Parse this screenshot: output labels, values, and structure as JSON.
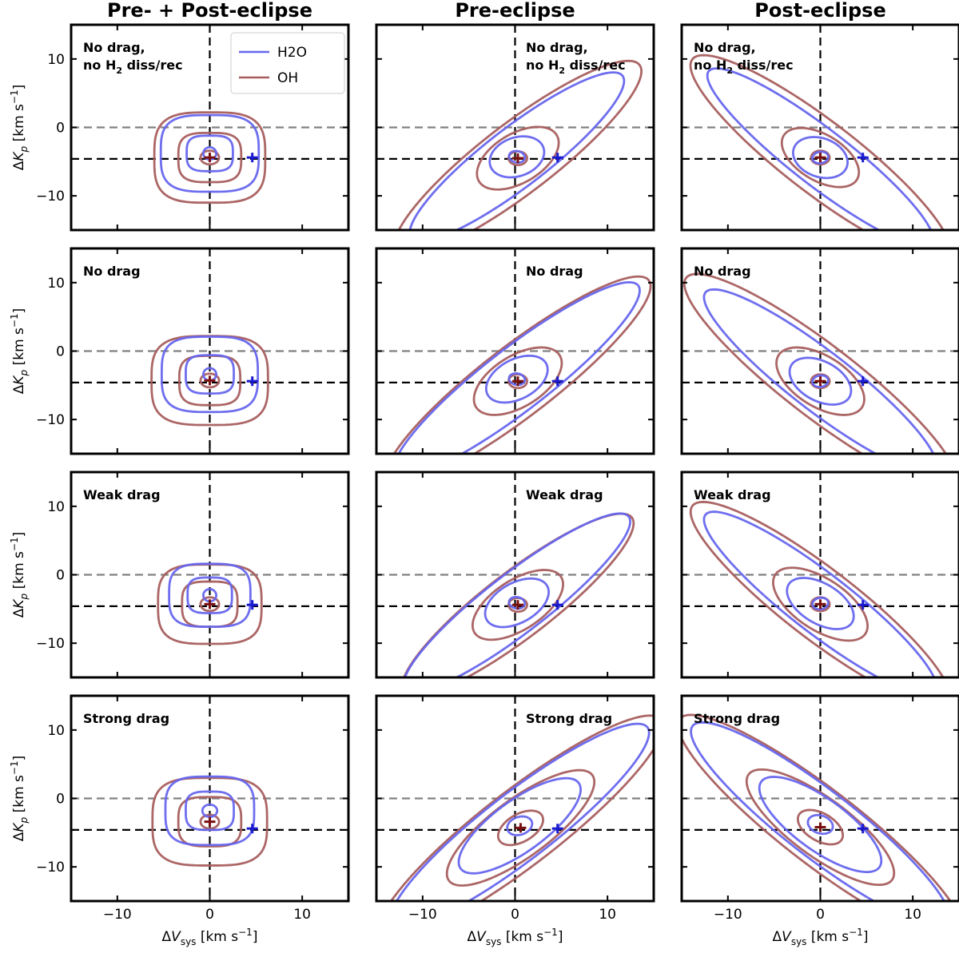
{
  "chart_data": {
    "type": "contour",
    "column_titles": [
      "Pre- + Post-eclipse",
      "Pre-eclipse",
      "Post-eclipse"
    ],
    "row_labels": [
      [
        "No drag,",
        "no H2 diss/rec"
      ],
      [
        "No drag"
      ],
      [
        "Weak drag"
      ],
      [
        "Strong drag"
      ]
    ],
    "xlabel": "ΔVsys [km s-1]",
    "ylabel": "ΔKp [km s-1]",
    "xlim": [
      -15,
      15
    ],
    "ylim": [
      -15,
      15
    ],
    "xticks": [
      -10,
      0,
      10
    ],
    "yticks": [
      -10,
      0,
      10
    ],
    "reference_lines": {
      "vsys_zero": 0,
      "kp_zero": 0,
      "kp_offset": -4.6
    },
    "reference_marker": {
      "dvsys": 4.6,
      "dkp": -4.4
    },
    "colors": {
      "H2O": "#6666ee",
      "OH": "#a85e5e",
      "h2o_marker": "#1a1ad0",
      "oh_marker": "#7a1010",
      "zero_line": "#808080"
    },
    "legend": {
      "position": "upper-right",
      "entries": [
        "H2O",
        "OH"
      ],
      "panel": "row1-col1"
    },
    "species": [
      "H2O",
      "OH"
    ],
    "panels": [
      [
        {
          "H2O_center": [
            0,
            -3.8
          ],
          "OH_center": [
            0,
            -4.4
          ],
          "H2O_contours": [
            [
              0.7,
              0.9
            ],
            [
              2.5,
              2.6
            ],
            [
              5.3,
              5.6
            ]
          ],
          "OH_contours": [
            [
              1.0,
              1.0
            ],
            [
              3.4,
              3.6
            ],
            [
              6.0,
              6.6
            ]
          ]
        },
        {
          "H2O_center": [
            0.2,
            -4.3
          ],
          "OH_center": [
            0.3,
            -4.5
          ],
          "H2O_contours": [
            [
              0.8,
              0.9
            ],
            [
              3.3,
              2.6
            ],
            [
              16.5,
              3.8
            ]
          ],
          "OH_contours": [
            [
              1.0,
              1.0
            ],
            [
              5.5,
              3.2
            ],
            [
              19.0,
              4.5
            ]
          ]
        },
        {
          "H2O_center": [
            0,
            -4.4
          ],
          "OH_center": [
            0,
            -4.4
          ],
          "H2O_contours": [
            [
              0.8,
              0.9
            ],
            [
              3.3,
              2.6
            ],
            [
              17.5,
              3.6
            ]
          ],
          "OH_contours": [
            [
              1.0,
              1.0
            ],
            [
              5.2,
              3.0
            ],
            [
              20.0,
              4.6
            ]
          ]
        }
      ],
      [
        {
          "H2O_center": [
            0,
            -3.4
          ],
          "OH_center": [
            0,
            -4.3
          ],
          "H2O_contours": [
            [
              0.7,
              0.9
            ],
            [
              2.6,
              2.8
            ],
            [
              5.2,
              5.5
            ]
          ],
          "OH_contours": [
            [
              1.0,
              1.0
            ],
            [
              3.3,
              3.6
            ],
            [
              6.3,
              6.5
            ]
          ]
        },
        {
          "H2O_center": [
            0.2,
            -4.1
          ],
          "OH_center": [
            0.3,
            -4.4
          ],
          "H2O_contours": [
            [
              0.8,
              0.9
            ],
            [
              4.0,
              2.6
            ],
            [
              19.0,
              4.0
            ]
          ],
          "OH_contours": [
            [
              1.0,
              1.0
            ],
            [
              6.0,
              3.3
            ],
            [
              20.5,
              4.5
            ]
          ]
        },
        {
          "H2O_center": [
            0,
            -4.4
          ],
          "OH_center": [
            0,
            -4.4
          ],
          "H2O_contours": [
            [
              0.8,
              0.9
            ],
            [
              4.0,
              2.6
            ],
            [
              18.0,
              3.8
            ]
          ],
          "OH_contours": [
            [
              1.0,
              1.0
            ],
            [
              6.0,
              3.3
            ],
            [
              21.0,
              4.6
            ]
          ]
        }
      ],
      [
        {
          "H2O_center": [
            0,
            -3.0
          ],
          "OH_center": [
            0,
            -4.3
          ],
          "H2O_contours": [
            [
              0.7,
              0.9
            ],
            [
              2.4,
              2.6
            ],
            [
              4.4,
              4.6
            ]
          ],
          "OH_contours": [
            [
              1.0,
              1.0
            ],
            [
              3.0,
              3.3
            ],
            [
              5.6,
              5.8
            ]
          ]
        },
        {
          "H2O_center": [
            0.2,
            -4.1
          ],
          "OH_center": [
            0.3,
            -4.4
          ],
          "H2O_contours": [
            [
              0.8,
              0.9
            ],
            [
              4.2,
              2.6
            ],
            [
              17.5,
              3.8
            ]
          ],
          "OH_contours": [
            [
              1.0,
              1.0
            ],
            [
              6.3,
              3.2
            ],
            [
              17.8,
              4.2
            ]
          ]
        },
        {
          "H2O_center": [
            0,
            -4.2
          ],
          "OH_center": [
            0,
            -4.3
          ],
          "H2O_contours": [
            [
              0.8,
              0.9
            ],
            [
              4.5,
              2.6
            ],
            [
              18.0,
              3.8
            ]
          ],
          "OH_contours": [
            [
              1.0,
              1.0
            ],
            [
              6.6,
              3.3
            ],
            [
              20.0,
              4.5
            ]
          ]
        }
      ],
      [
        {
          "H2O_center": [
            0,
            -1.8
          ],
          "OH_center": [
            0,
            -3.4
          ],
          "H2O_contours": [
            [
              0.8,
              0.9
            ],
            [
              2.6,
              2.8
            ],
            [
              4.8,
              5.0
            ]
          ],
          "OH_contours": [
            [
              1.0,
              1.0
            ],
            [
              3.4,
              3.6
            ],
            [
              6.2,
              6.4
            ]
          ]
        },
        {
          "H2O_center": [
            0.5,
            -4.0
          ],
          "OH_center": [
            0.6,
            -4.3
          ],
          "H2O_contours": [
            [
              1.5,
              1.2
            ],
            [
              9.0,
              3.3
            ],
            [
              20.0,
              4.3
            ]
          ],
          "OH_contours": [
            [
              3.0,
              1.8
            ],
            [
              11.0,
              3.7
            ],
            [
              22.0,
              4.8
            ]
          ]
        },
        {
          "H2O_center": [
            0,
            -3.8
          ],
          "OH_center": [
            0,
            -4.2
          ],
          "H2O_contours": [
            [
              1.5,
              1.2
            ],
            [
              9.0,
              3.3
            ],
            [
              20.0,
              4.3
            ]
          ],
          "OH_contours": [
            [
              3.0,
              1.8
            ],
            [
              11.0,
              3.7
            ],
            [
              22.0,
              4.8
            ]
          ]
        }
      ]
    ]
  }
}
